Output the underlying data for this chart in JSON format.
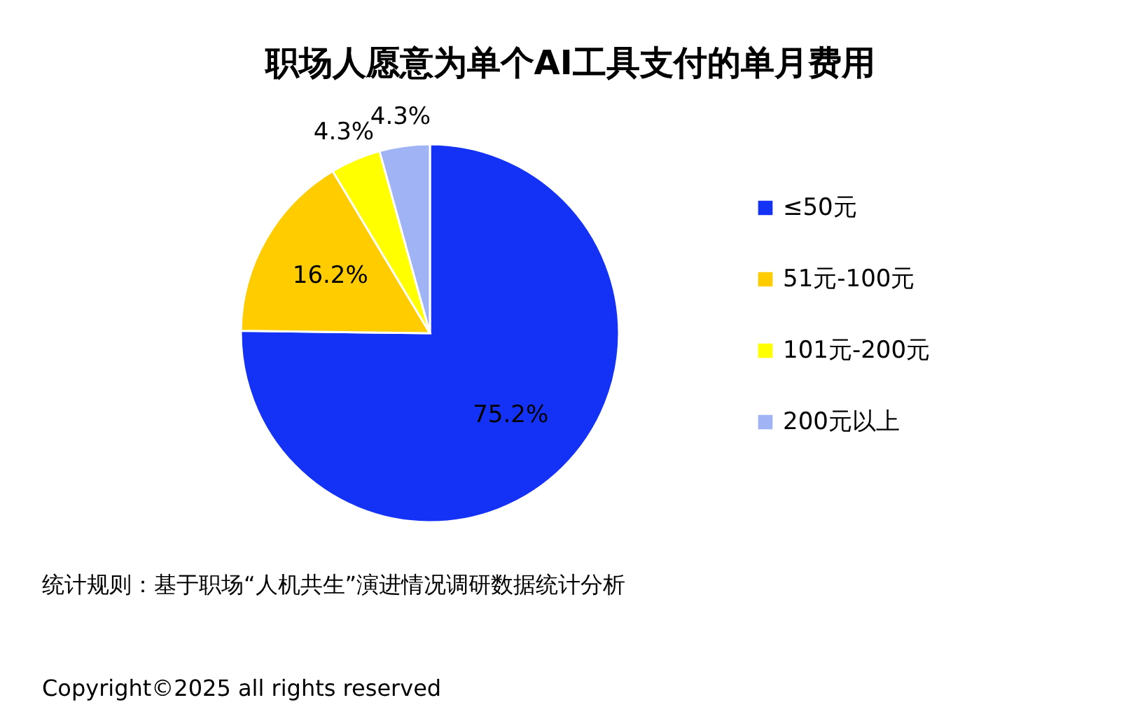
{
  "chart_data": {
    "type": "pie",
    "title": "职场人愿意为单个AI工具支付的单月费用",
    "categories": [
      "≤50元",
      "51元-100元",
      "101元-200元",
      "200元以上"
    ],
    "values": [
      75.2,
      16.2,
      4.3,
      4.3
    ],
    "colors": [
      "#1432f5",
      "#ffcc00",
      "#ffff00",
      "#a0b4f5"
    ],
    "value_labels": [
      "75.2%",
      "16.2%",
      "4.3%",
      "4.3%"
    ],
    "legend": "right",
    "annotations": [
      "统计规则：基于职场“人机共生”演进情况调研数据统计分析",
      "Copyright©2025 all rights reserved"
    ]
  }
}
